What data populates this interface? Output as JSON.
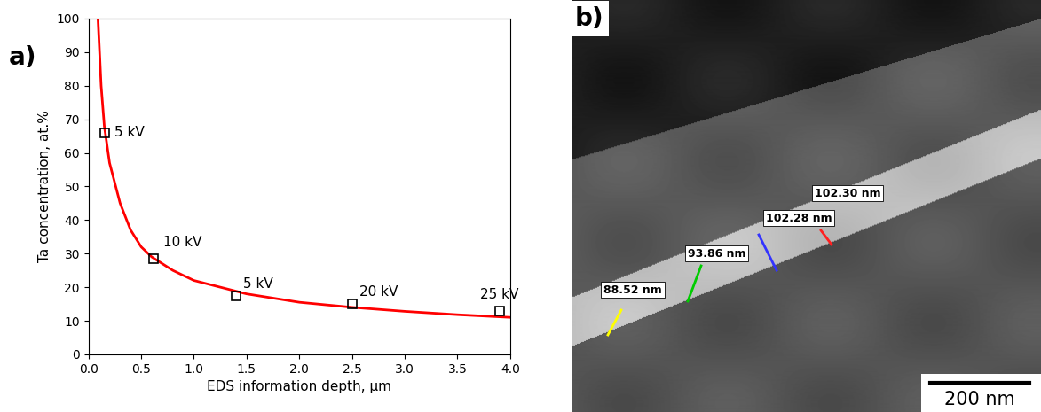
{
  "chart_data": {
    "type": "scatter",
    "panel_label": "a)",
    "x_label": "EDS information depth, µm",
    "y_label": "Ta concentration, at.%",
    "x": [
      0.15,
      0.62,
      1.4,
      2.5,
      3.9
    ],
    "values": [
      66,
      28.5,
      17.5,
      15,
      13
    ],
    "point_labels": [
      "5 kV",
      "10 kV",
      "5 kV",
      "20 kV",
      "25 kV"
    ],
    "color": "#000000",
    "marker": "square",
    "fit": {
      "type": "line",
      "color": "#ff0000",
      "x": [
        0.09,
        0.12,
        0.15,
        0.2,
        0.3,
        0.4,
        0.5,
        0.6,
        0.8,
        1.0,
        1.5,
        2.0,
        2.5,
        3.0,
        3.5,
        4.0
      ],
      "values": [
        100,
        80,
        68,
        57,
        45,
        37,
        32,
        29,
        25,
        22,
        18,
        15.5,
        14,
        12.8,
        11.8,
        11
      ]
    },
    "xlim": [
      0,
      4
    ],
    "ylim": [
      0,
      100
    ],
    "xticks": [
      {
        "value": 0,
        "label": "0.0"
      },
      {
        "value": 0.5,
        "label": "0.5"
      },
      {
        "value": 1,
        "label": "1.0"
      },
      {
        "value": 1.5,
        "label": "1.5"
      },
      {
        "value": 2,
        "label": "2.0"
      },
      {
        "value": 2.5,
        "label": "2.5"
      },
      {
        "value": 3,
        "label": "3.0"
      },
      {
        "value": 3.5,
        "label": "3.5"
      },
      {
        "value": 4,
        "label": "4.0"
      }
    ],
    "yticks": [
      0,
      10,
      20,
      30,
      40,
      50,
      60,
      70,
      80,
      90,
      100
    ]
  },
  "micrograph": {
    "panel_label": "b)",
    "measurements": [
      {
        "label": "88.52 nm",
        "color": "#ffff00"
      },
      {
        "label": "93.86 nm",
        "color": "#00cc00"
      },
      {
        "label": "102.28 nm",
        "color": "#3333ff"
      },
      {
        "label": "102.30 nm",
        "color": "#ff2020"
      }
    ],
    "scale_bar": "200 nm"
  }
}
